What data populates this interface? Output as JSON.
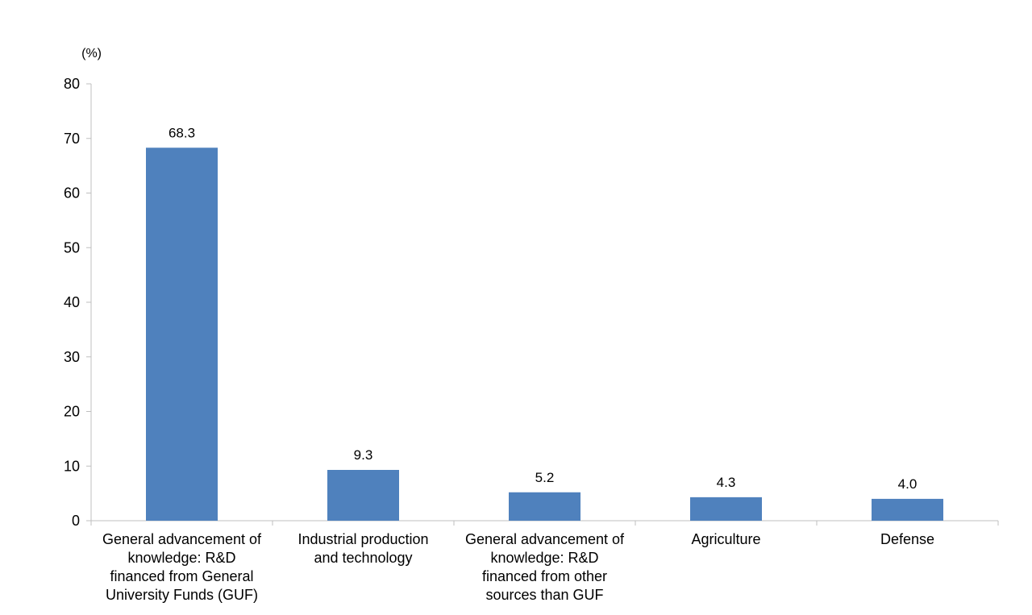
{
  "chart_data": {
    "type": "bar",
    "title": "",
    "xlabel": "",
    "ylabel": "(%)",
    "ylim": [
      0,
      80
    ],
    "yticks": [
      0,
      10,
      20,
      30,
      40,
      50,
      60,
      70,
      80
    ],
    "grid": false,
    "categories": [
      [
        "General advancement of",
        "knowledge: R&D",
        "financed from General",
        "University Funds (GUF)"
      ],
      [
        "Industrial production",
        "and technology"
      ],
      [
        "General advancement of",
        "knowledge: R&D",
        "financed from other",
        "sources than GUF"
      ],
      [
        "Agriculture"
      ],
      [
        "Defense"
      ]
    ],
    "values": [
      68.3,
      9.3,
      5.2,
      4.3,
      4.0
    ],
    "value_labels": [
      "68.3",
      "9.3",
      "5.2",
      "4.3",
      "4.0"
    ],
    "bar_color": "#4F81BD",
    "axis_color": "#BFBFBF"
  }
}
